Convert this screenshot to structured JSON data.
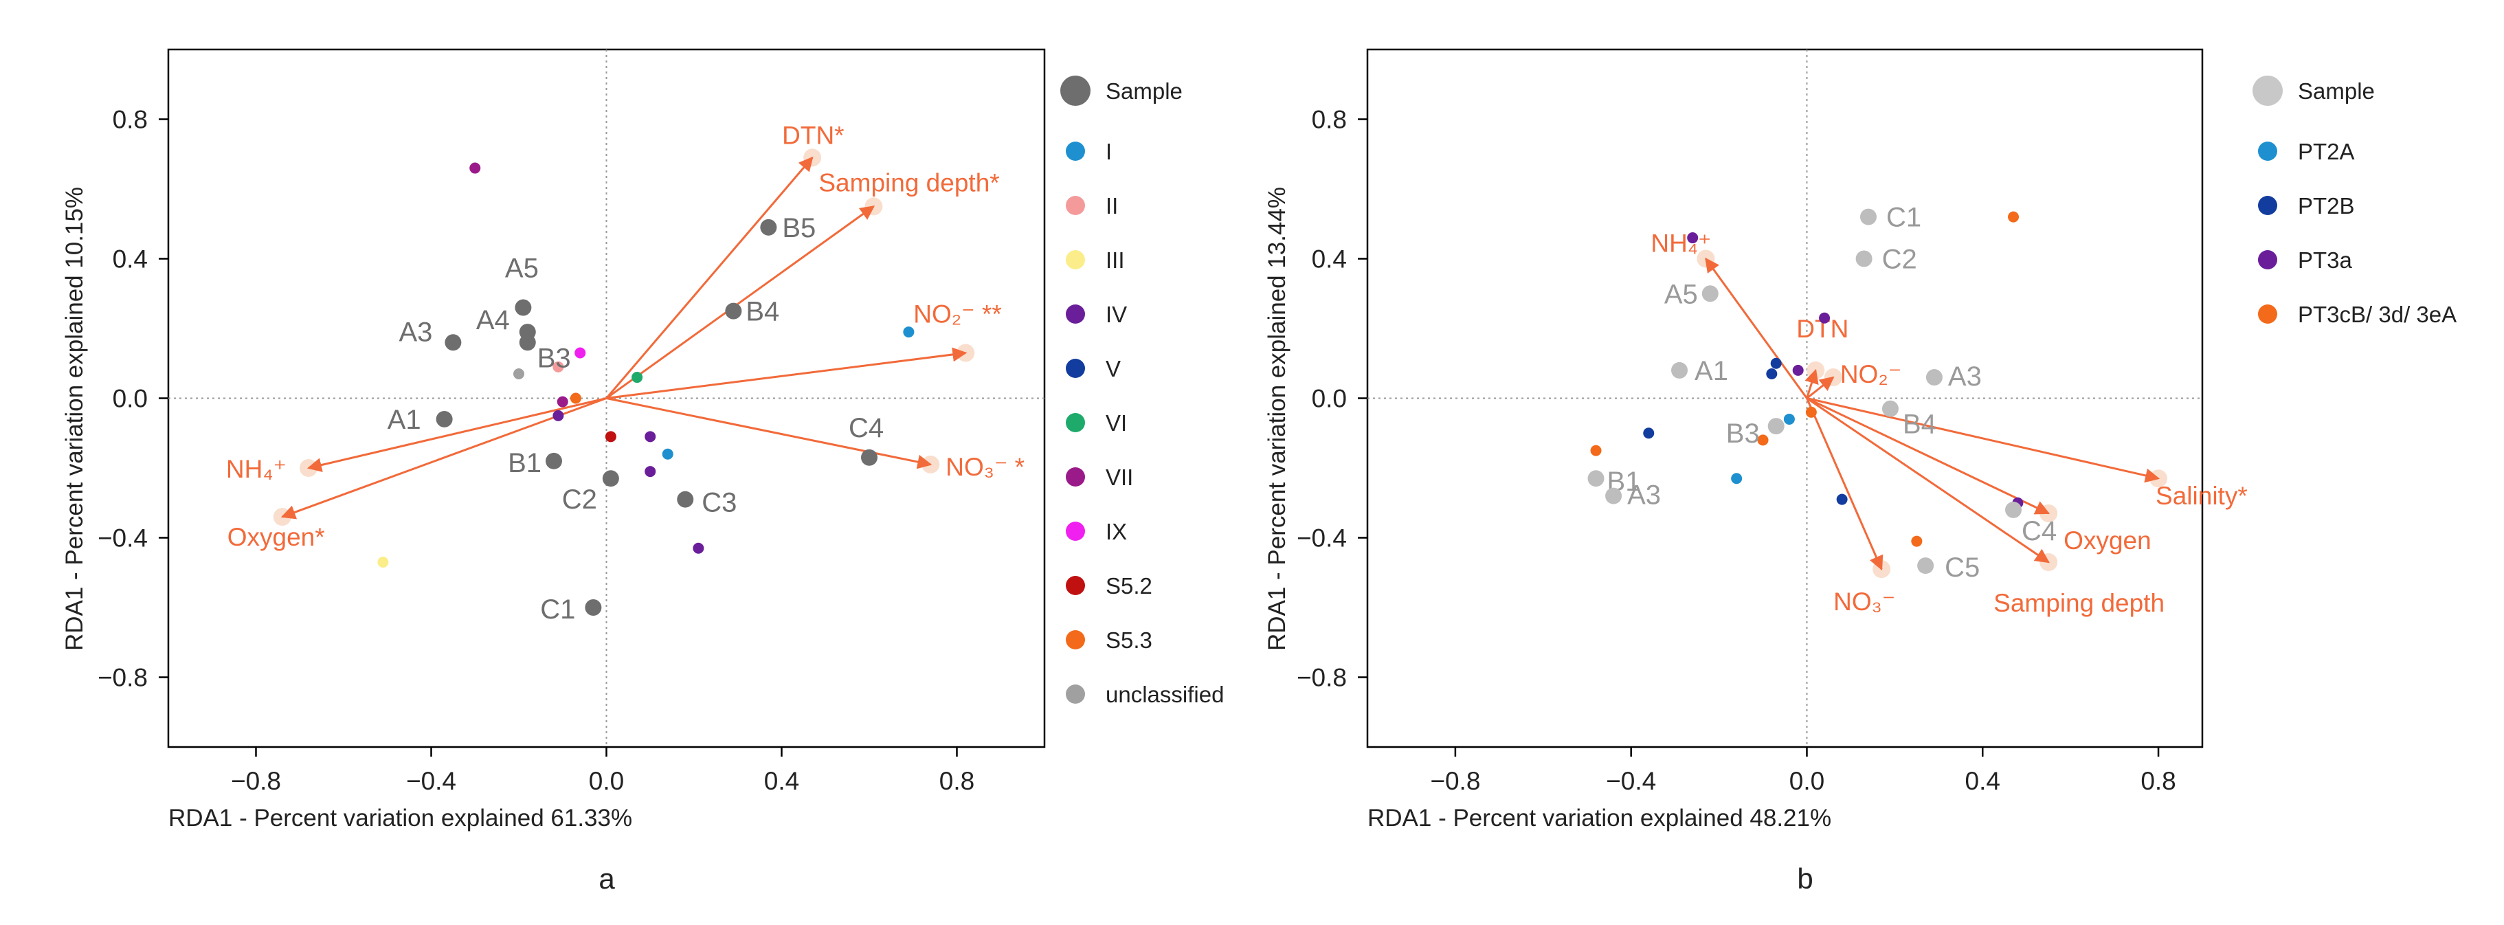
{
  "chart_data": [
    {
      "type": "scatter",
      "panel_label": "a",
      "xlabel": "RDA1 - Percent variation explained 61.33%",
      "ylabel": "RDA1 - Percent variation explained 10.15%",
      "xlim": [
        -1.0,
        1.0
      ],
      "ylim": [
        -1.0,
        1.0
      ],
      "xticks": [
        -0.8,
        -0.4,
        0.0,
        0.4,
        0.8
      ],
      "xtick_labels": [
        "−0.8",
        "−0.4",
        "0.0",
        "0.4",
        "0.8"
      ],
      "yticks": [
        0.8,
        0.4,
        0.0,
        -0.4,
        -0.8
      ],
      "ytick_labels": [
        "0.8",
        "0.4",
        "0.0",
        "−0.4",
        "−0.8"
      ],
      "zero_lines": true,
      "arrow_color": "#F26A3A",
      "sample_color": "#6E6E6E",
      "legend": [
        {
          "label": "Sample",
          "color": "#6E6E6E",
          "kind": "big"
        },
        {
          "label": "I",
          "color": "#1E90D0",
          "kind": "small"
        },
        {
          "label": "II",
          "color": "#F59A9A",
          "kind": "small"
        },
        {
          "label": "III",
          "color": "#FBEE8A",
          "kind": "small"
        },
        {
          "label": "IV",
          "color": "#6A1E9A",
          "kind": "small"
        },
        {
          "label": "V",
          "color": "#123C9E",
          "kind": "small"
        },
        {
          "label": "VI",
          "color": "#1EAA6A",
          "kind": "small"
        },
        {
          "label": "VII",
          "color": "#9A1A8A",
          "kind": "small"
        },
        {
          "label": "IX",
          "color": "#F020F0",
          "kind": "small"
        },
        {
          "label": "S5.2",
          "color": "#C01010",
          "kind": "small"
        },
        {
          "label": "S5.3",
          "color": "#F26A1A",
          "kind": "small"
        },
        {
          "label": "unclassified",
          "color": "#A0A0A0",
          "kind": "small"
        }
      ],
      "arrows": [
        {
          "label": "DTN*",
          "x": 0.47,
          "y": 0.69
        },
        {
          "label": "Samping depth*",
          "x": 0.61,
          "y": 0.55
        },
        {
          "label": "NO₂⁻ **",
          "x": 0.82,
          "y": 0.13
        },
        {
          "label": "NO₃⁻ *",
          "x": 0.74,
          "y": -0.19
        },
        {
          "label": "NH₄⁺",
          "x": -0.68,
          "y": -0.2
        },
        {
          "label": "Oxygen*",
          "x": -0.74,
          "y": -0.34
        }
      ],
      "samples": [
        {
          "label": "A5",
          "x": -0.19,
          "y": 0.26
        },
        {
          "label": "A4",
          "x": -0.18,
          "y": 0.19
        },
        {
          "label": "B3",
          "x": -0.18,
          "y": 0.16
        },
        {
          "label": "A3",
          "x": -0.35,
          "y": 0.16
        },
        {
          "label": "A1",
          "x": -0.37,
          "y": -0.06
        },
        {
          "label": "B1",
          "x": -0.12,
          "y": -0.18
        },
        {
          "label": "C2",
          "x": 0.01,
          "y": -0.23
        },
        {
          "label": "C3",
          "x": 0.18,
          "y": -0.29
        },
        {
          "label": "C1",
          "x": -0.03,
          "y": -0.6
        },
        {
          "label": "B4",
          "x": 0.29,
          "y": 0.25
        },
        {
          "label": "B5",
          "x": 0.37,
          "y": 0.49
        },
        {
          "label": "C4",
          "x": 0.6,
          "y": -0.17
        }
      ],
      "points": [
        {
          "x": -0.3,
          "y": 0.66,
          "color": "#9A1A8A"
        },
        {
          "x": 0.69,
          "y": 0.19,
          "color": "#1E90D0"
        },
        {
          "x": -0.51,
          "y": -0.47,
          "color": "#FBEE8A"
        },
        {
          "x": 0.07,
          "y": 0.06,
          "color": "#1EAA6A"
        },
        {
          "x": -0.06,
          "y": 0.13,
          "color": "#F020F0"
        },
        {
          "x": -0.11,
          "y": 0.09,
          "color": "#F59A9A"
        },
        {
          "x": -0.2,
          "y": 0.07,
          "color": "#A0A0A0"
        },
        {
          "x": -0.07,
          "y": 0.0,
          "color": "#F26A1A"
        },
        {
          "x": -0.1,
          "y": -0.01,
          "color": "#9A1A8A"
        },
        {
          "x": -0.11,
          "y": -0.05,
          "color": "#6A1E9A"
        },
        {
          "x": 0.01,
          "y": -0.11,
          "color": "#C01010"
        },
        {
          "x": 0.1,
          "y": -0.11,
          "color": "#6A1E9A"
        },
        {
          "x": 0.14,
          "y": -0.16,
          "color": "#1E90D0"
        },
        {
          "x": 0.1,
          "y": -0.21,
          "color": "#6A1E9A"
        },
        {
          "x": 0.21,
          "y": -0.43,
          "color": "#6A1E9A"
        }
      ]
    },
    {
      "type": "scatter",
      "panel_label": "b",
      "xlabel": "RDA1 - Percent variation explained 48.21%",
      "ylabel": "RDA1 - Percent variation explained 13.44%",
      "xlim": [
        -1.0,
        0.9
      ],
      "ylim": [
        -1.0,
        1.0
      ],
      "xticks": [
        -0.8,
        -0.4,
        0.0,
        0.4,
        0.8
      ],
      "xtick_labels": [
        "−0.8",
        "−0.4",
        "0.0",
        "0.4",
        "0.8"
      ],
      "yticks": [
        0.8,
        0.4,
        0.0,
        -0.4,
        -0.8
      ],
      "ytick_labels": [
        "0.8",
        "0.4",
        "0.0",
        "−0.4",
        "−0.8"
      ],
      "zero_lines": true,
      "arrow_color": "#F26A3A",
      "sample_color": "#BDBDBD",
      "legend": [
        {
          "label": "Sample",
          "color": "#C8C8C8",
          "kind": "big"
        },
        {
          "label": "PT2A",
          "color": "#1E90D0",
          "kind": "small"
        },
        {
          "label": "PT2B",
          "color": "#123C9E",
          "kind": "small"
        },
        {
          "label": "PT3a",
          "color": "#6A1E9A",
          "kind": "small"
        },
        {
          "label": "PT3cB/ 3d/ 3eA",
          "color": "#F26A1A",
          "kind": "small"
        }
      ],
      "arrows": [
        {
          "label": "NH₄⁺",
          "x": -0.23,
          "y": 0.4
        },
        {
          "label": "DTN",
          "x": 0.02,
          "y": 0.08
        },
        {
          "label": "NO₂⁻",
          "x": 0.06,
          "y": 0.06
        },
        {
          "label": "Salinity*",
          "x": 0.8,
          "y": -0.23
        },
        {
          "label": "Oxygen",
          "x": 0.55,
          "y": -0.33
        },
        {
          "label": "Samping depth",
          "x": 0.55,
          "y": -0.47
        },
        {
          "label": "NO₃⁻",
          "x": 0.17,
          "y": -0.49
        }
      ],
      "samples": [
        {
          "label": "C1",
          "x": 0.14,
          "y": 0.52
        },
        {
          "label": "C2",
          "x": 0.13,
          "y": 0.4
        },
        {
          "label": "A5",
          "x": -0.22,
          "y": 0.3
        },
        {
          "label": "A1",
          "x": -0.29,
          "y": 0.08
        },
        {
          "label": "A3",
          "x": 0.29,
          "y": 0.06
        },
        {
          "label": "B4",
          "x": 0.19,
          "y": -0.03
        },
        {
          "label": "B3",
          "x": -0.07,
          "y": -0.08
        },
        {
          "label": "B1",
          "x": -0.48,
          "y": -0.23
        },
        {
          "label": "A3",
          "x": -0.44,
          "y": -0.28
        },
        {
          "label": "C4",
          "x": 0.47,
          "y": -0.32
        },
        {
          "label": "C5",
          "x": 0.27,
          "y": -0.48
        }
      ],
      "points": [
        {
          "x": 0.47,
          "y": 0.52,
          "color": "#F26A1A"
        },
        {
          "x": -0.26,
          "y": 0.46,
          "color": "#6A1E9A"
        },
        {
          "x": 0.04,
          "y": 0.23,
          "color": "#6A1E9A"
        },
        {
          "x": -0.07,
          "y": 0.1,
          "color": "#123C9E"
        },
        {
          "x": -0.08,
          "y": 0.07,
          "color": "#123C9E"
        },
        {
          "x": -0.02,
          "y": 0.08,
          "color": "#6A1E9A"
        },
        {
          "x": -0.04,
          "y": -0.06,
          "color": "#1E90D0"
        },
        {
          "x": -0.1,
          "y": -0.12,
          "color": "#F26A1A"
        },
        {
          "x": 0.01,
          "y": -0.04,
          "color": "#F26A1A"
        },
        {
          "x": -0.36,
          "y": -0.1,
          "color": "#123C9E"
        },
        {
          "x": -0.48,
          "y": -0.15,
          "color": "#F26A1A"
        },
        {
          "x": -0.16,
          "y": -0.23,
          "color": "#1E90D0"
        },
        {
          "x": 0.08,
          "y": -0.29,
          "color": "#123C9E"
        },
        {
          "x": 0.25,
          "y": -0.41,
          "color": "#F26A1A"
        },
        {
          "x": 0.48,
          "y": -0.3,
          "color": "#6A1E9A"
        }
      ]
    }
  ]
}
